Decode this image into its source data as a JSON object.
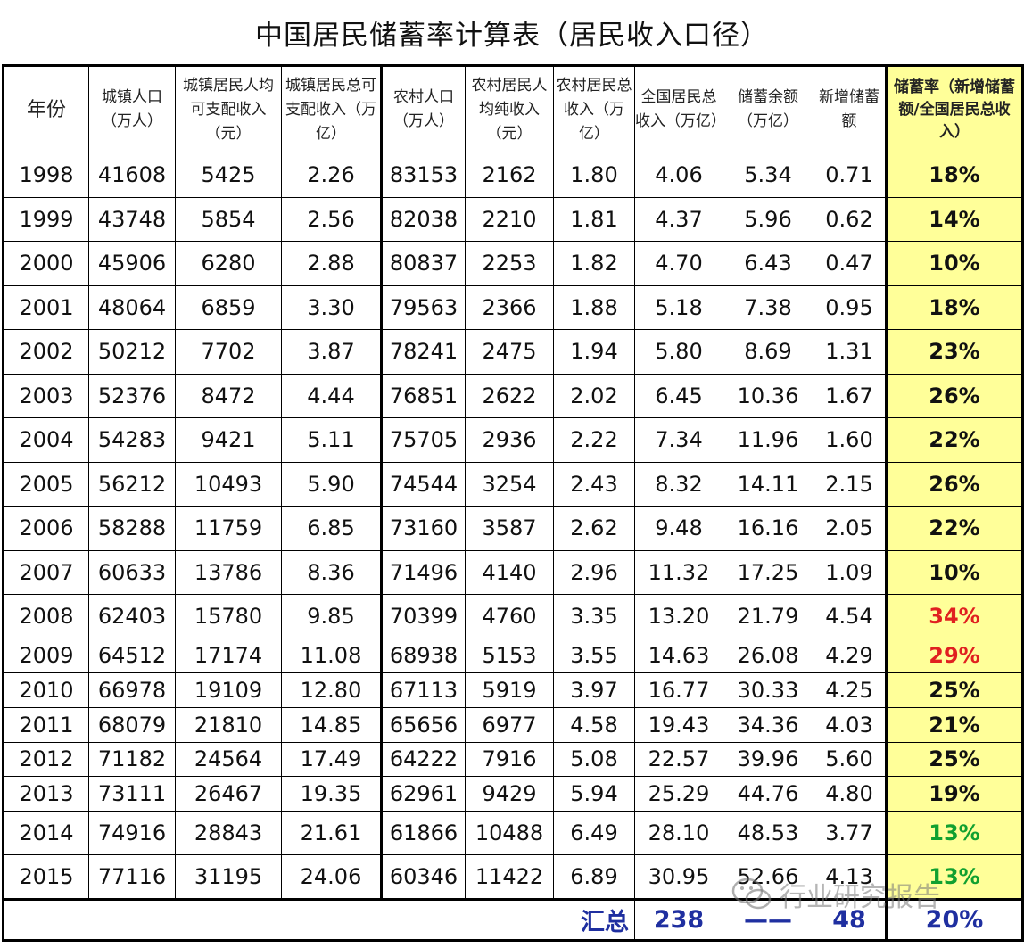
{
  "title": "中国居民储蓄率计算表（居民收入口径）",
  "headers": [
    "年份",
    "城镇人口（万人）",
    "城镇居民人均可支配收入（元）",
    "城镇居民总可支配收入（万亿）",
    "农村人口（万人）",
    "农村居民人均纯收入（元）",
    "农村居民总收入（万亿）",
    "全国居民总收入（万亿）",
    "储蓄余额（万亿）",
    "新增储蓄额",
    "储蓄率（新增储蓄额/全国居民总收入）"
  ],
  "rows": [
    [
      "1998",
      "41608",
      "5425",
      "2.26",
      "83153",
      "2162",
      "1.80",
      "4.06",
      "5.34",
      "0.71",
      "18%"
    ],
    [
      "1999",
      "43748",
      "5854",
      "2.56",
      "82038",
      "2210",
      "1.81",
      "4.37",
      "5.96",
      "0.62",
      "14%"
    ],
    [
      "2000",
      "45906",
      "6280",
      "2.88",
      "80837",
      "2253",
      "1.82",
      "4.70",
      "6.43",
      "0.47",
      "10%"
    ],
    [
      "2001",
      "48064",
      "6859",
      "3.30",
      "79563",
      "2366",
      "1.88",
      "5.18",
      "7.38",
      "0.95",
      "18%"
    ],
    [
      "2002",
      "50212",
      "7702",
      "3.87",
      "78241",
      "2475",
      "1.94",
      "5.80",
      "8.69",
      "1.31",
      "23%"
    ],
    [
      "2003",
      "52376",
      "8472",
      "4.44",
      "76851",
      "2622",
      "2.02",
      "6.45",
      "10.36",
      "1.67",
      "26%"
    ],
    [
      "2004",
      "54283",
      "9421",
      "5.11",
      "75705",
      "2936",
      "2.22",
      "7.34",
      "11.96",
      "1.60",
      "22%"
    ],
    [
      "2005",
      "56212",
      "10493",
      "5.90",
      "74544",
      "3254",
      "2.43",
      "8.32",
      "14.11",
      "2.15",
      "26%"
    ],
    [
      "2006",
      "58288",
      "11759",
      "6.85",
      "73160",
      "3587",
      "2.62",
      "9.48",
      "16.16",
      "2.05",
      "22%"
    ],
    [
      "2007",
      "60633",
      "13786",
      "8.36",
      "71496",
      "4140",
      "2.96",
      "11.32",
      "17.25",
      "1.09",
      "10%"
    ],
    [
      "2008",
      "62403",
      "15780",
      "9.85",
      "70399",
      "4760",
      "3.35",
      "13.20",
      "21.79",
      "4.54",
      "34%"
    ],
    [
      "2009",
      "64512",
      "17174",
      "11.08",
      "68938",
      "5153",
      "3.55",
      "14.63",
      "26.08",
      "4.29",
      "29%"
    ],
    [
      "2010",
      "66978",
      "19109",
      "12.80",
      "67113",
      "5919",
      "3.97",
      "16.77",
      "30.33",
      "4.25",
      "25%"
    ],
    [
      "2011",
      "68079",
      "21810",
      "14.85",
      "65656",
      "6977",
      "4.58",
      "19.43",
      "34.36",
      "4.03",
      "21%"
    ],
    [
      "2012",
      "71182",
      "24564",
      "17.49",
      "64222",
      "7916",
      "5.08",
      "22.57",
      "39.96",
      "5.60",
      "25%"
    ],
    [
      "2013",
      "73111",
      "26467",
      "19.35",
      "62961",
      "9429",
      "5.94",
      "25.29",
      "44.76",
      "4.80",
      "19%"
    ],
    [
      "2014",
      "74916",
      "28843",
      "21.61",
      "61866",
      "10488",
      "6.49",
      "28.10",
      "48.53",
      "3.77",
      "13%"
    ],
    [
      "2015",
      "77116",
      "31195",
      "24.06",
      "60346",
      "11422",
      "6.89",
      "30.95",
      "52.66",
      "4.13",
      "13%"
    ]
  ],
  "rate_colors": {
    "2008": "#e02020",
    "2009": "#e02020",
    "2014": "#10a030",
    "2015": "#10a030"
  },
  "total": {
    "label": "汇总",
    "total_income": "238",
    "balance": "——",
    "new_savings": "48",
    "rate": "20%"
  },
  "watermark": "行业研究报告",
  "watermark_icon": "wechat-icon"
}
